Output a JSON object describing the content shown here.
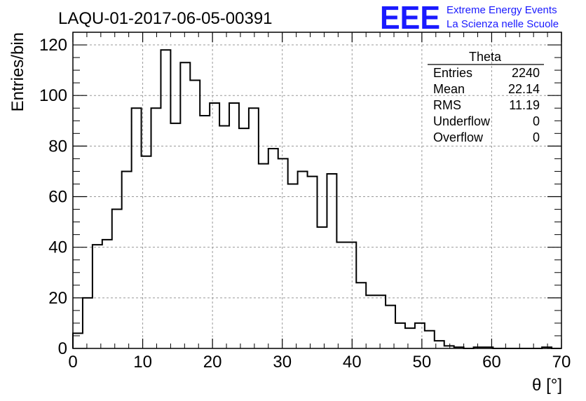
{
  "chart_data": {
    "type": "bar",
    "style": "step-histogram",
    "title": "LAQU-01-2017-06-05-00391",
    "xlabel": "θ [°]",
    "ylabel": "Entries/bin",
    "xlim": [
      0,
      70
    ],
    "ylim": [
      0,
      125
    ],
    "bin_width": 1.4,
    "x_ticks": [
      "0",
      "10",
      "20",
      "30",
      "40",
      "50",
      "60",
      "70"
    ],
    "y_ticks": [
      "0",
      "20",
      "40",
      "60",
      "80",
      "100",
      "120"
    ],
    "grid": true,
    "bin_edges_start": 0,
    "values": [
      6,
      20,
      41,
      43,
      55,
      70,
      95,
      76,
      95,
      118,
      89,
      113,
      106,
      92,
      97,
      88,
      97,
      87,
      95,
      73,
      79,
      75,
      65,
      70,
      68,
      48,
      69,
      42,
      42,
      26,
      21,
      21,
      17,
      10,
      8,
      10,
      7,
      3,
      1,
      0.5,
      0,
      0.5,
      0.5,
      0,
      0,
      0,
      0,
      0,
      0.5,
      0
    ],
    "stats": {
      "name": "Theta",
      "rows": [
        {
          "label": "Entries",
          "value": "2240"
        },
        {
          "label": "Mean",
          "value": "22.14"
        },
        {
          "label": "RMS",
          "value": "11.19"
        },
        {
          "label": "Underflow",
          "value": "0"
        },
        {
          "label": "Overflow",
          "value": "0"
        }
      ]
    }
  },
  "logo": {
    "mark": "EEE",
    "line1": "Extreme Energy Events",
    "line2": "La Scienza nelle Scuole",
    "color": "#1a1aff"
  }
}
